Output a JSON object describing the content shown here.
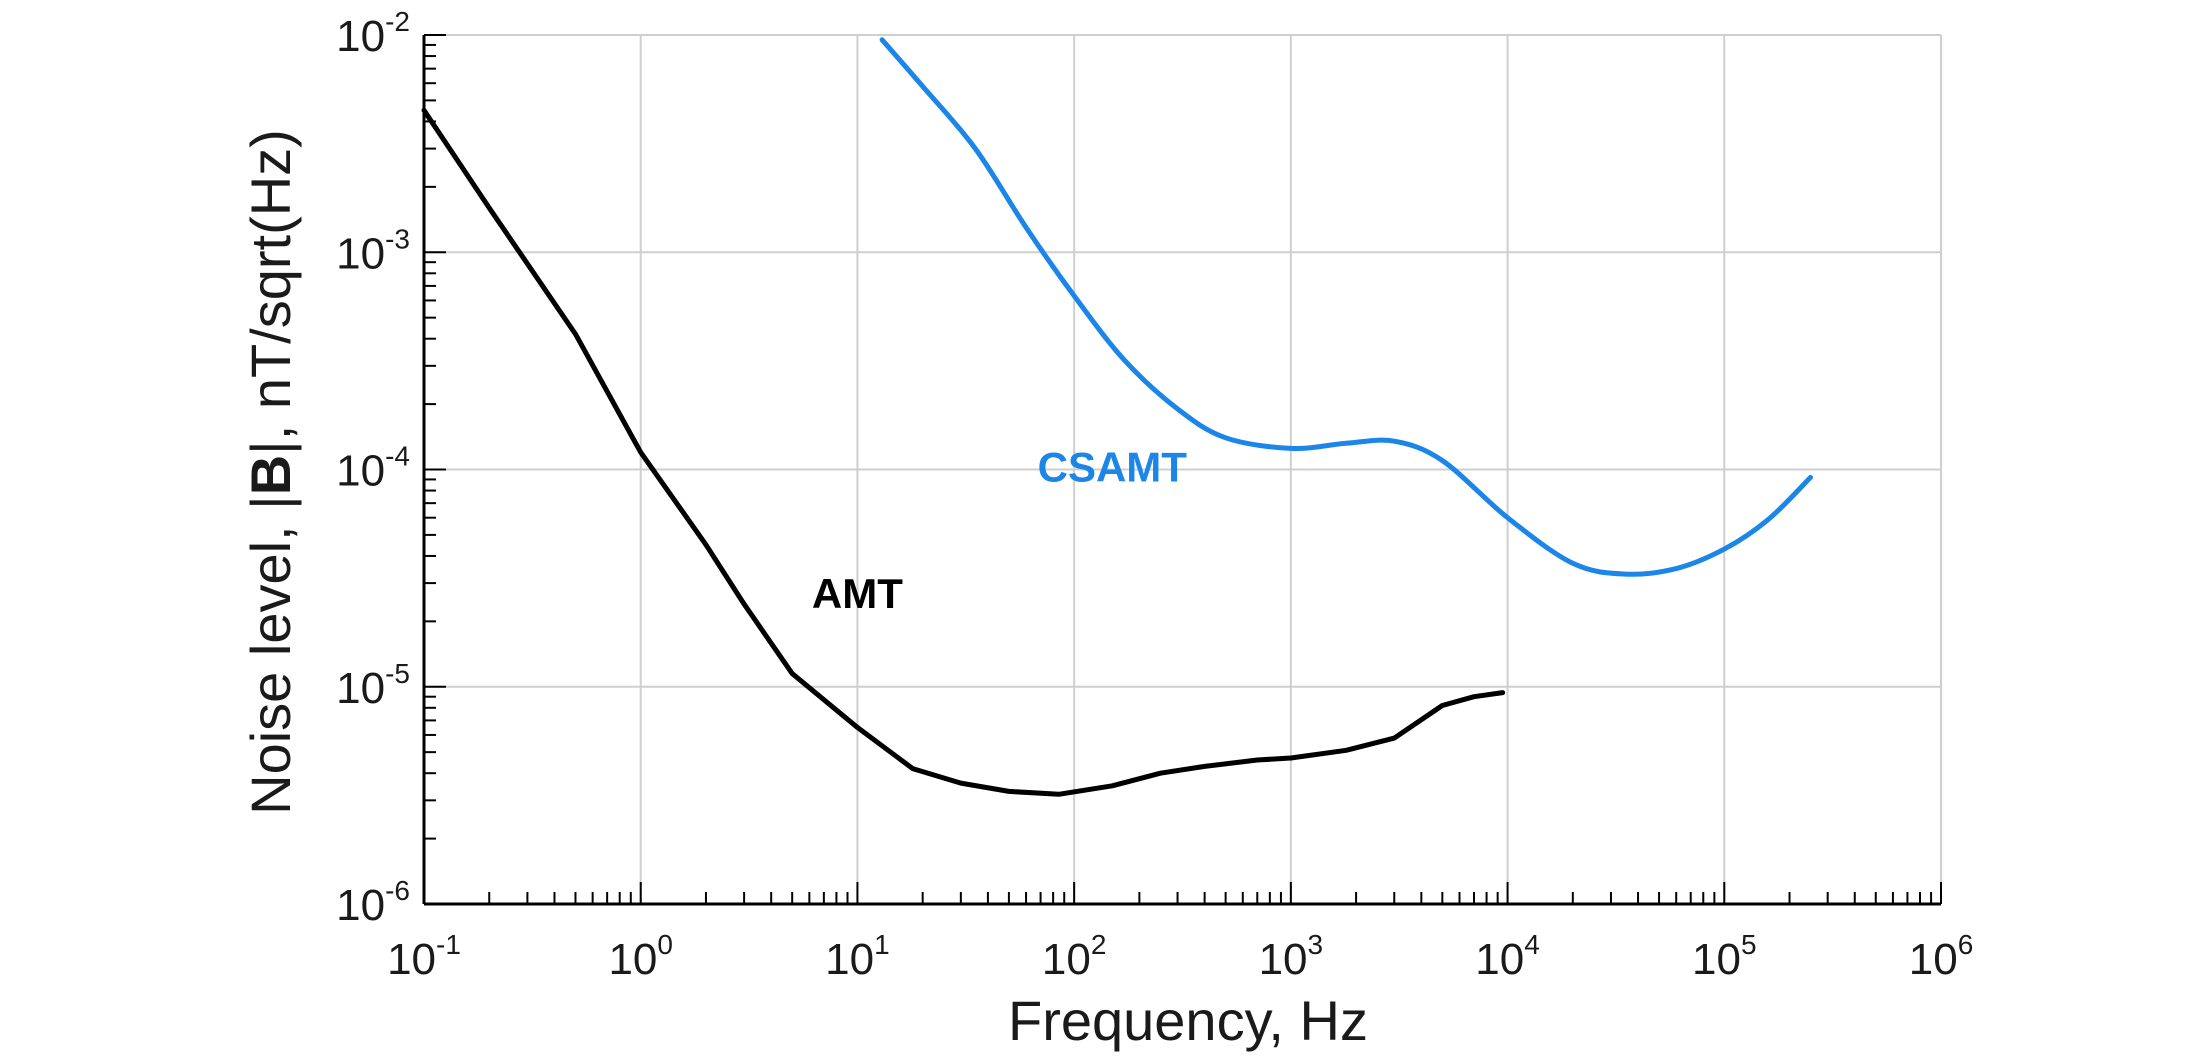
{
  "chart_data": {
    "type": "line",
    "x_scale": "log",
    "y_scale": "log",
    "xlim": [
      0.1,
      1000000
    ],
    "ylim": [
      1e-06,
      0.01
    ],
    "grid": true,
    "xlabel": "Frequency, Hz",
    "ylabel": {
      "before": "Noise level, |",
      "bold": "B",
      "after": "|, nT/sqrt(Hz)"
    },
    "x_ticks": [
      {
        "base": "10",
        "exp": "-1",
        "value": 0.1
      },
      {
        "base": "10",
        "exp": "0",
        "value": 1
      },
      {
        "base": "10",
        "exp": "1",
        "value": 10
      },
      {
        "base": "10",
        "exp": "2",
        "value": 100
      },
      {
        "base": "10",
        "exp": "3",
        "value": 1000
      },
      {
        "base": "10",
        "exp": "4",
        "value": 10000
      },
      {
        "base": "10",
        "exp": "5",
        "value": 100000
      },
      {
        "base": "10",
        "exp": "6",
        "value": 1000000
      }
    ],
    "y_ticks": [
      {
        "base": "10",
        "exp": "-6",
        "value": 1e-06
      },
      {
        "base": "10",
        "exp": "-5",
        "value": 1e-05
      },
      {
        "base": "10",
        "exp": "-4",
        "value": 0.0001
      },
      {
        "base": "10",
        "exp": "-3",
        "value": 0.001
      },
      {
        "base": "10",
        "exp": "-2",
        "value": 0.01
      }
    ],
    "series": [
      {
        "name": "AMT",
        "color": "#000000",
        "curve": "linear",
        "x": [
          0.1,
          0.2,
          0.5,
          1,
          2,
          3,
          5,
          10,
          18,
          30,
          50,
          85,
          150,
          250,
          400,
          700,
          1000,
          1800,
          3000,
          5000,
          7000,
          9500
        ],
        "y": [
          0.0045,
          0.0016,
          0.00042,
          0.00012,
          4.5e-05,
          2.4e-05,
          1.15e-05,
          6.5e-06,
          4.2e-06,
          3.6e-06,
          3.3e-06,
          3.2e-06,
          3.5e-06,
          4e-06,
          4.3e-06,
          4.6e-06,
          4.7e-06,
          5.1e-06,
          5.8e-06,
          8.2e-06,
          9e-06,
          9.4e-06
        ]
      },
      {
        "name": "CSAMT",
        "color": "#1b86e8",
        "curve": "smooth",
        "x": [
          13,
          20,
          35,
          60,
          100,
          170,
          300,
          500,
          1000,
          1800,
          3000,
          5000,
          10000,
          20000,
          35000,
          60000,
          100000,
          160000,
          250000
        ],
        "y": [
          0.0095,
          0.0058,
          0.003,
          0.0013,
          0.00063,
          0.00032,
          0.00019,
          0.00014,
          0.000125,
          0.000132,
          0.000135,
          0.00011,
          6e-05,
          3.7e-05,
          3.3e-05,
          3.5e-05,
          4.3e-05,
          5.9e-05,
          9.2e-05
        ]
      }
    ],
    "annotations": [
      {
        "text": "AMT",
        "x": 10,
        "y": 2.3e-05,
        "color": "#000000"
      },
      {
        "text": "CSAMT",
        "x": 150,
        "y": 8.8e-05,
        "color": "#1b86e8"
      }
    ]
  }
}
